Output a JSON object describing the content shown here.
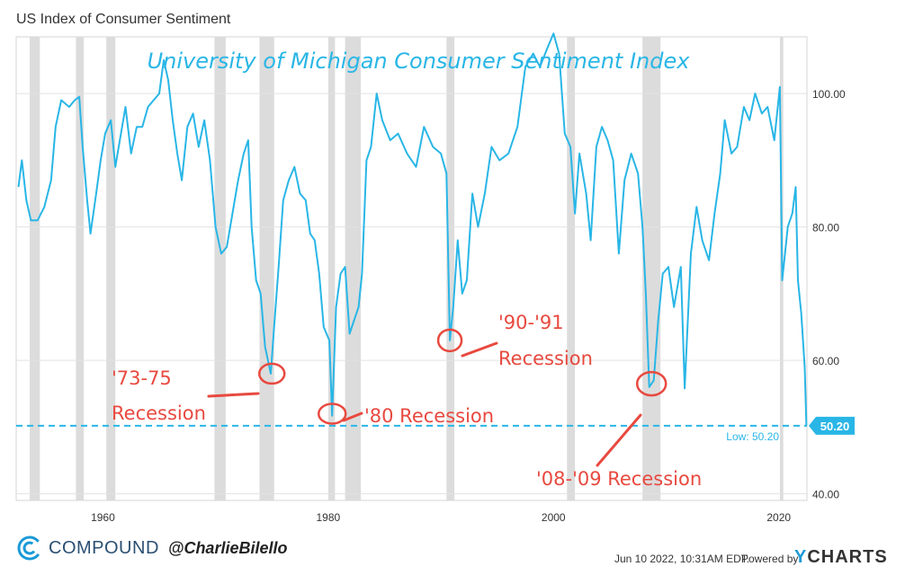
{
  "header": {
    "title": "US Index of Consumer Sentiment"
  },
  "chart_data": {
    "type": "line",
    "title": "University of Michigan Consumer Sentiment Index",
    "xlabel": "",
    "ylabel": "",
    "xlim": [
      1952.3,
      2022.5
    ],
    "ylim": [
      39,
      108.5
    ],
    "xticks": [
      1960,
      1980,
      2000,
      2020
    ],
    "yticks": [
      40,
      60,
      80,
      100
    ],
    "ytick_labels": [
      "40.00",
      "60.00",
      "80.00",
      "100.00"
    ],
    "grid": true,
    "series": [
      {
        "name": "Consumer Sentiment",
        "color": "#29b6e6",
        "points": [
          [
            1952.5,
            86
          ],
          [
            1952.8,
            90
          ],
          [
            1953.2,
            84
          ],
          [
            1953.6,
            81
          ],
          [
            1954.2,
            81
          ],
          [
            1954.8,
            83
          ],
          [
            1955.4,
            87
          ],
          [
            1955.8,
            95
          ],
          [
            1956.3,
            99
          ],
          [
            1957,
            98
          ],
          [
            1957.5,
            99
          ],
          [
            1957.9,
            99.5
          ],
          [
            1958.2,
            92
          ],
          [
            1958.6,
            84
          ],
          [
            1958.9,
            79
          ],
          [
            1959.4,
            85
          ],
          [
            1959.8,
            90
          ],
          [
            1960.2,
            94
          ],
          [
            1960.7,
            96
          ],
          [
            1961.1,
            89
          ],
          [
            1961.5,
            93
          ],
          [
            1962,
            98
          ],
          [
            1962.5,
            91
          ],
          [
            1963,
            95
          ],
          [
            1963.5,
            95
          ],
          [
            1964,
            98
          ],
          [
            1964.5,
            99
          ],
          [
            1965,
            100
          ],
          [
            1965.4,
            105
          ],
          [
            1965.8,
            102
          ],
          [
            1966.2,
            96
          ],
          [
            1966.6,
            91
          ],
          [
            1967,
            87
          ],
          [
            1967.5,
            95
          ],
          [
            1968,
            97
          ],
          [
            1968.5,
            92
          ],
          [
            1969,
            96
          ],
          [
            1969.5,
            90
          ],
          [
            1970,
            80
          ],
          [
            1970.5,
            76
          ],
          [
            1971,
            77
          ],
          [
            1971.5,
            82
          ],
          [
            1972,
            87
          ],
          [
            1972.5,
            91
          ],
          [
            1972.9,
            93
          ],
          [
            1973.2,
            80
          ],
          [
            1973.6,
            72
          ],
          [
            1974,
            70
          ],
          [
            1974.4,
            62
          ],
          [
            1974.9,
            58
          ],
          [
            1975.2,
            65
          ],
          [
            1975.6,
            74
          ],
          [
            1976,
            84
          ],
          [
            1976.5,
            87
          ],
          [
            1977,
            89
          ],
          [
            1977.5,
            85
          ],
          [
            1978,
            84
          ],
          [
            1978.4,
            79
          ],
          [
            1978.8,
            78
          ],
          [
            1979.2,
            73
          ],
          [
            1979.6,
            65
          ],
          [
            1980.1,
            63
          ],
          [
            1980.35,
            51.7
          ],
          [
            1980.7,
            68
          ],
          [
            1981.1,
            73
          ],
          [
            1981.5,
            74
          ],
          [
            1981.9,
            64
          ],
          [
            1982.3,
            66
          ],
          [
            1982.7,
            68
          ],
          [
            1983,
            73
          ],
          [
            1983.4,
            90
          ],
          [
            1983.8,
            92
          ],
          [
            1984.3,
            100
          ],
          [
            1984.8,
            96
          ],
          [
            1985.5,
            93
          ],
          [
            1986.2,
            94
          ],
          [
            1987,
            91
          ],
          [
            1987.8,
            89
          ],
          [
            1988.5,
            95
          ],
          [
            1989.3,
            92
          ],
          [
            1990,
            91
          ],
          [
            1990.5,
            88
          ],
          [
            1990.8,
            63
          ],
          [
            1991.1,
            68
          ],
          [
            1991.5,
            78
          ],
          [
            1991.9,
            70
          ],
          [
            1992.3,
            72
          ],
          [
            1992.8,
            85
          ],
          [
            1993.3,
            80
          ],
          [
            1993.9,
            85
          ],
          [
            1994.5,
            92
          ],
          [
            1995.2,
            90
          ],
          [
            1996,
            91
          ],
          [
            1996.8,
            95
          ],
          [
            1997.5,
            104
          ],
          [
            1998.2,
            106
          ],
          [
            1998.8,
            104
          ],
          [
            1999.5,
            107
          ],
          [
            2000,
            109
          ],
          [
            2000.5,
            106
          ],
          [
            2001,
            94
          ],
          [
            2001.5,
            92
          ],
          [
            2001.9,
            82
          ],
          [
            2002.3,
            91
          ],
          [
            2002.9,
            85
          ],
          [
            2003.3,
            78
          ],
          [
            2003.8,
            92
          ],
          [
            2004.3,
            95
          ],
          [
            2004.8,
            93
          ],
          [
            2005.3,
            90
          ],
          [
            2005.8,
            76
          ],
          [
            2006.3,
            87
          ],
          [
            2006.9,
            91
          ],
          [
            2007.5,
            88
          ],
          [
            2007.9,
            80
          ],
          [
            2008.2,
            70
          ],
          [
            2008.5,
            56
          ],
          [
            2008.9,
            57
          ],
          [
            2009.3,
            66
          ],
          [
            2009.7,
            73
          ],
          [
            2010.2,
            74
          ],
          [
            2010.7,
            68
          ],
          [
            2011.3,
            74
          ],
          [
            2011.65,
            55.8
          ],
          [
            2012.2,
            76
          ],
          [
            2012.7,
            83
          ],
          [
            2013.2,
            78
          ],
          [
            2013.8,
            75
          ],
          [
            2014.3,
            82
          ],
          [
            2014.8,
            88
          ],
          [
            2015.2,
            96
          ],
          [
            2015.8,
            91
          ],
          [
            2016.3,
            92
          ],
          [
            2016.9,
            98
          ],
          [
            2017.4,
            96
          ],
          [
            2017.9,
            100
          ],
          [
            2018.5,
            97
          ],
          [
            2019,
            98
          ],
          [
            2019.6,
            93
          ],
          [
            2020.1,
            101
          ],
          [
            2020.3,
            72
          ],
          [
            2020.8,
            80
          ],
          [
            2021.2,
            82
          ],
          [
            2021.5,
            86
          ],
          [
            2021.7,
            72
          ],
          [
            2022,
            67
          ],
          [
            2022.3,
            59
          ],
          [
            2022.45,
            50.2
          ]
        ]
      }
    ],
    "recession_periods": [
      [
        1953.5,
        1954.4
      ],
      [
        1957.6,
        1958.3
      ],
      [
        1960.3,
        1961.1
      ],
      [
        1969.9,
        1970.9
      ],
      [
        1973.9,
        1975.2
      ],
      [
        1980,
        1980.6
      ],
      [
        1981.5,
        1982.9
      ],
      [
        1990.5,
        1991.2
      ],
      [
        2001.2,
        2001.9
      ],
      [
        2007.9,
        2009.5
      ],
      [
        2020.1,
        2020.4
      ]
    ],
    "low_line": {
      "value": 50.2,
      "label": "Low: 50.20",
      "badge": "50.20"
    },
    "annotations": [
      {
        "label": "'73-75",
        "label2": "Recession",
        "x": 1975.0,
        "y": 58.0
      },
      {
        "label": "'80 Recession",
        "x": 1980.35,
        "y": 52.0
      },
      {
        "label": "'90-'91",
        "label2": "Recession",
        "x": 1990.8,
        "y": 63.0
      },
      {
        "label": "'08-'09 Recession",
        "x": 2008.7,
        "y": 56.5
      }
    ]
  },
  "footer": {
    "brand_name": "COMPOUND",
    "handle": "@CharlieBilello",
    "date": "Jun 10 2022, 10:31AM EDT.",
    "powered": "Powered by",
    "ycharts_y": "Y",
    "ycharts_rest": "CHARTS"
  }
}
